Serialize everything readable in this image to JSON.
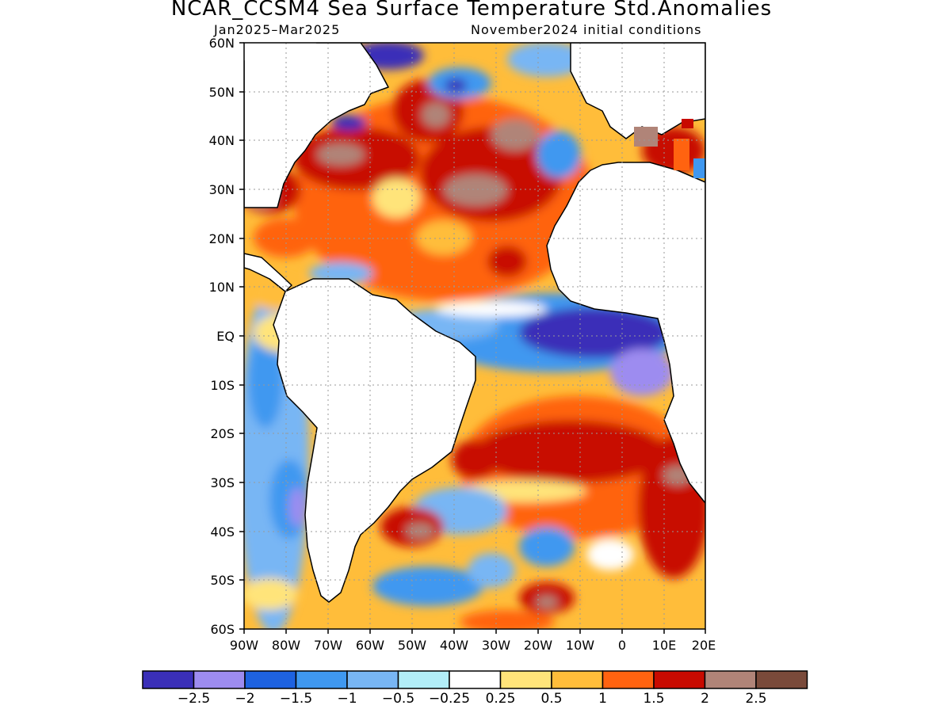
{
  "header": {
    "title": "NCAR_CCSM4 Sea Surface Temperature Std.Anomalies",
    "period": "Jan2025–Mar2025",
    "init": "November2024 initial conditions"
  },
  "map": {
    "lat_labels": [
      "60N",
      "50N",
      "40N",
      "30N",
      "20N",
      "10N",
      "EQ",
      "10S",
      "20S",
      "30S",
      "40S",
      "50S",
      "60S"
    ],
    "lon_labels": [
      "90W",
      "80W",
      "70W",
      "60W",
      "50W",
      "40W",
      "30W",
      "20W",
      "10W",
      "0",
      "10E",
      "20E"
    ],
    "lat_range": [
      -60,
      60
    ],
    "lon_range": [
      -90,
      20
    ],
    "grid": "dotted, every 10 degrees"
  },
  "colorbar": {
    "colors": [
      "#3a2fb8",
      "#9d8cf0",
      "#1e62e0",
      "#3f98f0",
      "#78b6f4",
      "#b2eef8",
      "#ffffff",
      "#ffe47a",
      "#ffbd3a",
      "#ff6310",
      "#c80a00",
      "#b08478",
      "#7a4a3a"
    ],
    "labels": [
      "−2.5",
      "−2",
      "−1.5",
      "−1",
      "−0.5",
      "−0.25",
      "0.25",
      "0.5",
      "1",
      "1.5",
      "2",
      "2.5"
    ]
  }
}
